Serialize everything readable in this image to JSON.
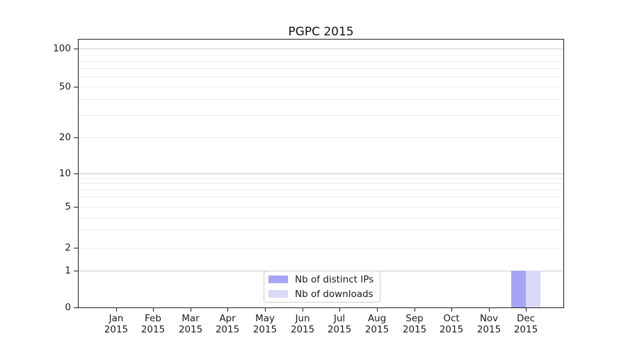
{
  "title": "PGPC 2015",
  "chart_data": {
    "type": "bar",
    "title": "PGPC 2015",
    "categories": [
      "Jan",
      "Feb",
      "Mar",
      "Apr",
      "May",
      "Jun",
      "Jul",
      "Aug",
      "Sep",
      "Oct",
      "Nov",
      "Dec"
    ],
    "x_year": "2015",
    "series": [
      {
        "name": "Nb of distinct IPs",
        "color": "#a5a5f4",
        "values": [
          0,
          0,
          0,
          0,
          0,
          0,
          0,
          0,
          0,
          0,
          0,
          1
        ]
      },
      {
        "name": "Nb of downloads",
        "color": "#d9d9f8",
        "values": [
          0,
          0,
          0,
          0,
          0,
          0,
          0,
          0,
          0,
          0,
          0,
          1
        ]
      }
    ],
    "yscale": "log above 1, linear 0-1",
    "ytick_labels": [
      100,
      50,
      20,
      10,
      5,
      2,
      1,
      0
    ],
    "ylim": [
      0,
      110
    ],
    "grid": {
      "horizontal_major": [
        1,
        10,
        100
      ],
      "horizontal_minor": [
        2,
        3,
        4,
        5,
        6,
        7,
        8,
        9,
        20,
        30,
        40,
        50,
        60,
        70,
        80,
        90
      ]
    },
    "legend": {
      "position": "inside bottom-center-left",
      "entries": [
        "Nb of distinct IPs",
        "Nb of downloads"
      ]
    }
  },
  "colors": {
    "bar_distinct_ips": "#a5a5f4",
    "bar_downloads": "#d9d9f8",
    "grid_major": "#c9c9c9",
    "grid_minor": "#ececec",
    "spine": "#1c1c1c",
    "legend_border": "#cccccc",
    "text": "#1a1a1a"
  }
}
